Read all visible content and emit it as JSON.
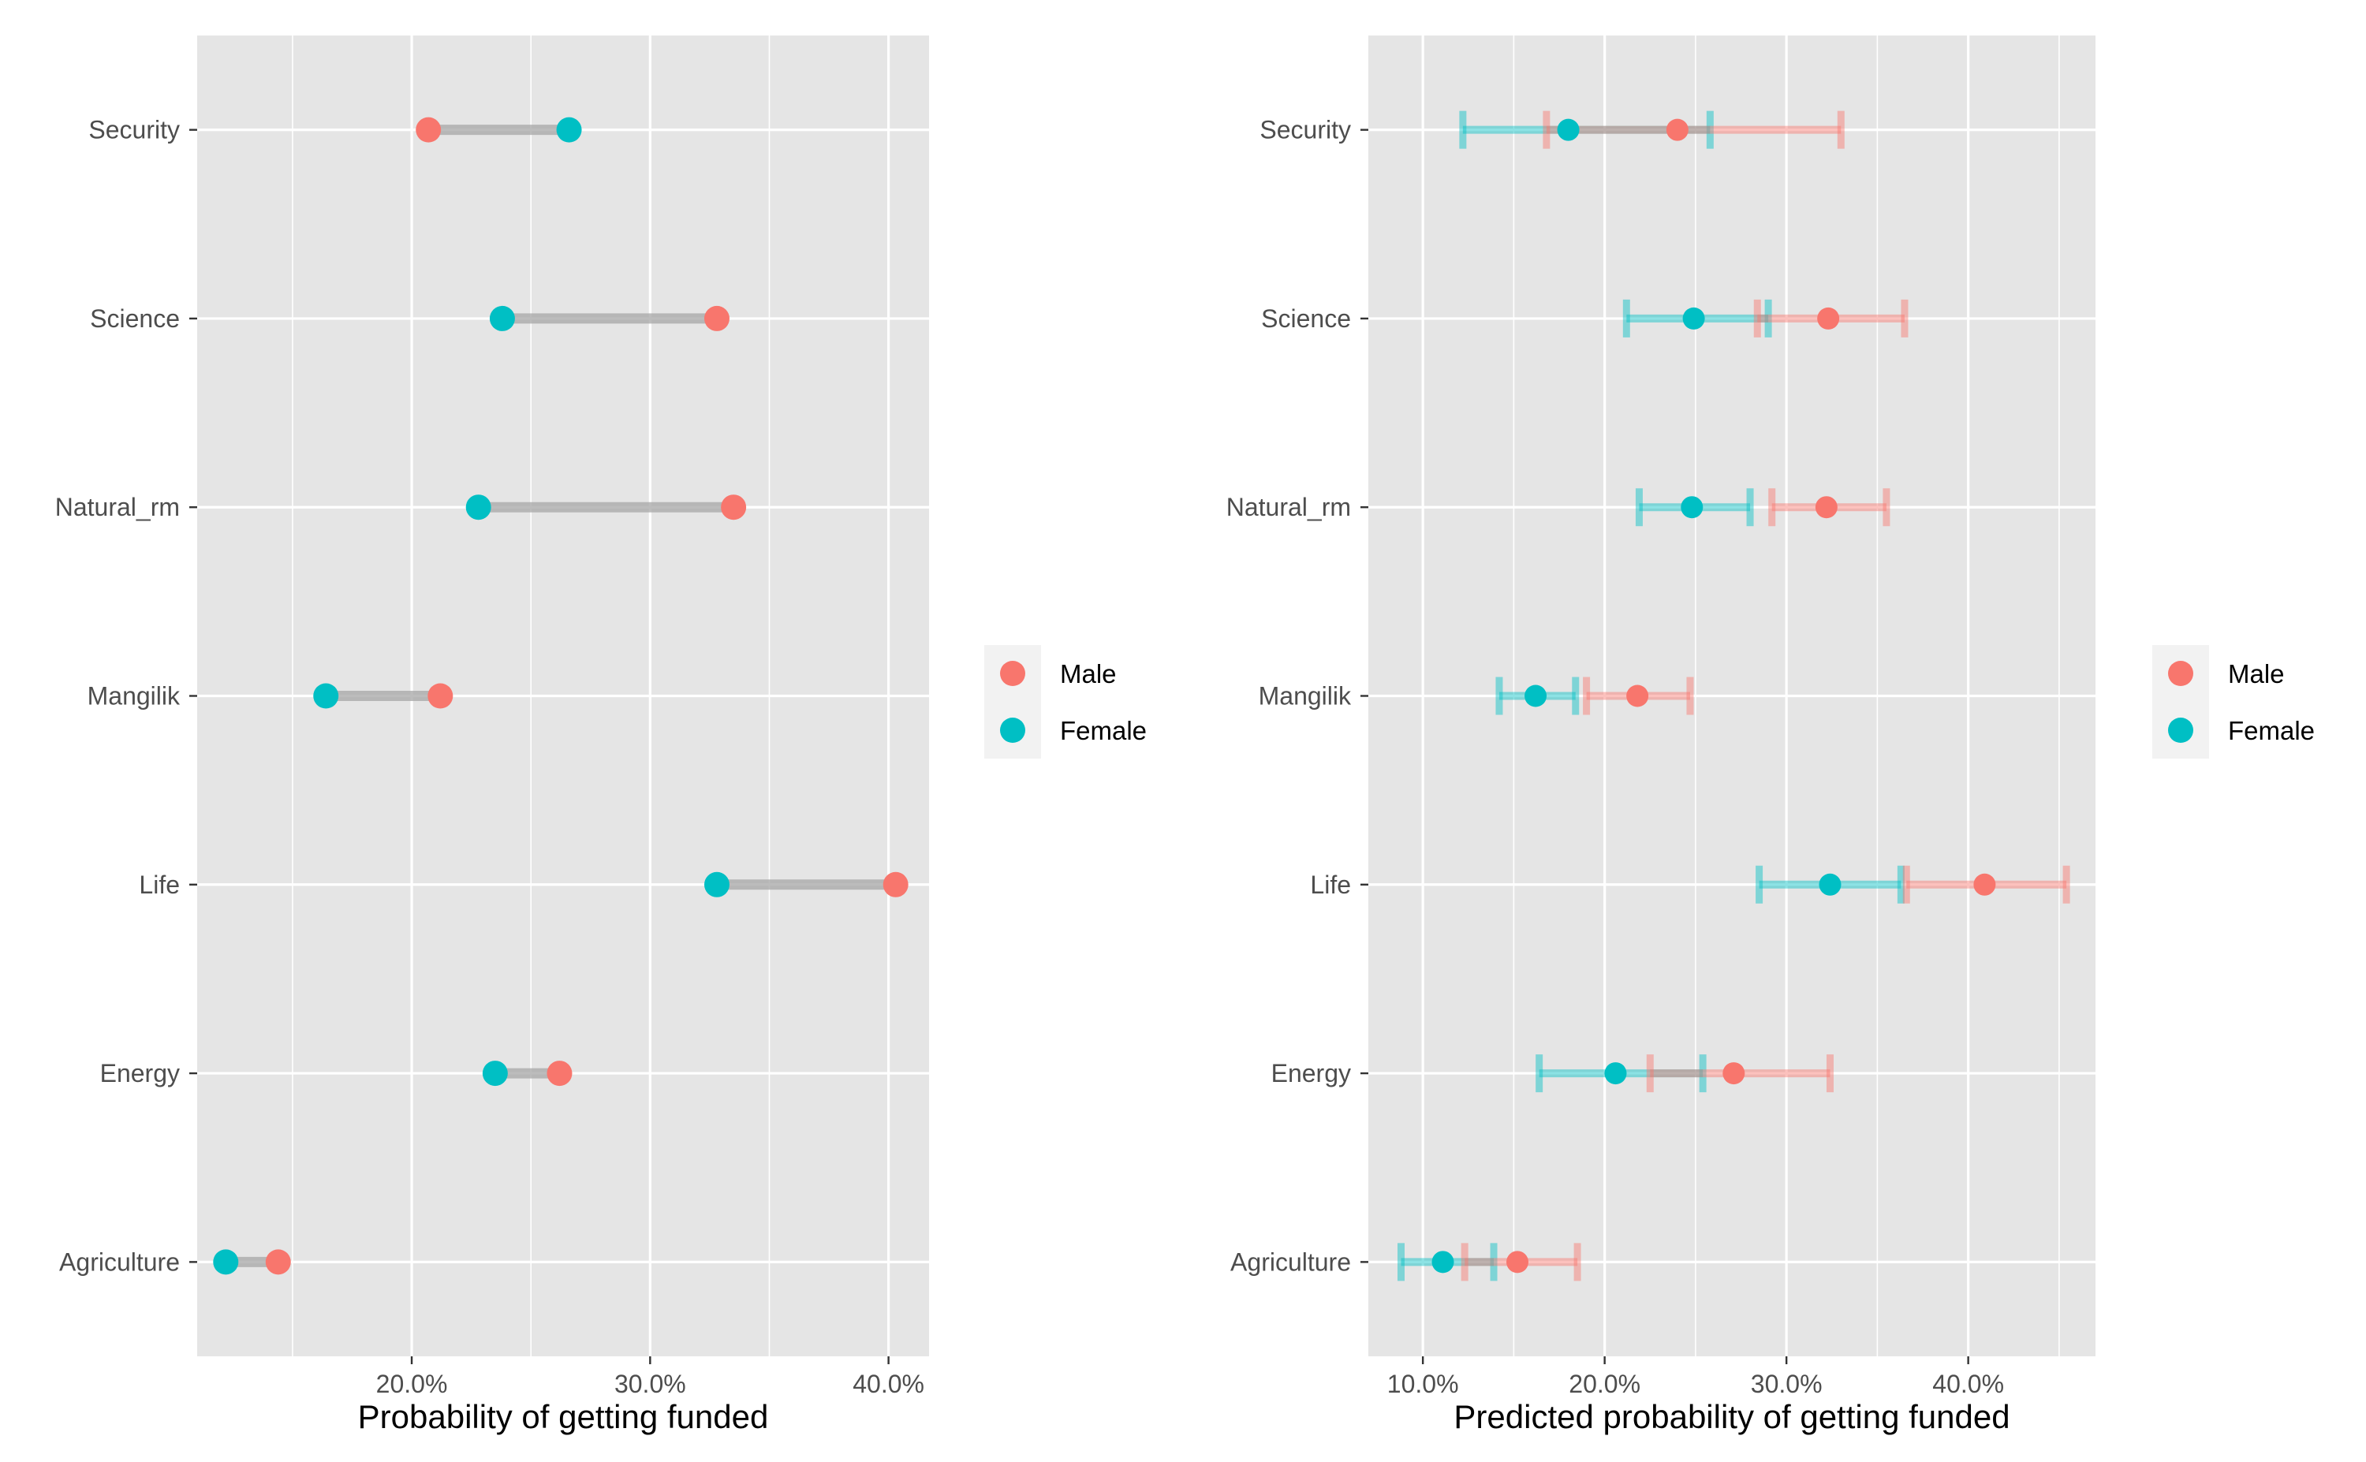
{
  "colors": {
    "male": "#f8766d",
    "female": "#00bfc4",
    "panel": "#e5e5e5",
    "segment": "#a6a6a6"
  },
  "chart_data": [
    {
      "type": "dumbbell",
      "title": "",
      "xlabel": "Probability of getting funded",
      "ylabel": "",
      "xlim": [
        11.0,
        41.7
      ],
      "x_ticks": [
        20,
        30,
        40
      ],
      "x_tick_labels": [
        "20.0%",
        "30.0%",
        "40.0%"
      ],
      "categories": [
        "Security",
        "Science",
        "Natural_rm",
        "Mangilik",
        "Life",
        "Energy",
        "Agriculture"
      ],
      "series": [
        {
          "name": "Male",
          "color": "#f8766d",
          "values": [
            20.7,
            32.8,
            33.5,
            21.2,
            40.3,
            26.2,
            14.4
          ]
        },
        {
          "name": "Female",
          "color": "#00bfc4",
          "values": [
            26.6,
            23.8,
            22.8,
            16.4,
            32.8,
            23.5,
            12.2
          ]
        }
      ],
      "legend": {
        "position": "right",
        "entries": [
          "Male",
          "Female"
        ]
      },
      "grid": true
    },
    {
      "type": "errorbar",
      "title": "",
      "xlabel": "Predicted probability of getting funded",
      "ylabel": "",
      "xlim": [
        7.0,
        47.0
      ],
      "x_ticks": [
        10,
        20,
        30,
        40
      ],
      "x_tick_labels": [
        "10.0%",
        "20.0%",
        "30.0%",
        "40.0%"
      ],
      "categories": [
        "Security",
        "Science",
        "Natural_rm",
        "Mangilik",
        "Life",
        "Energy",
        "Agriculture"
      ],
      "series": [
        {
          "name": "Male",
          "color": "#f8766d",
          "values": [
            24.0,
            32.3,
            32.2,
            21.8,
            40.9,
            27.1,
            15.2
          ],
          "lower": [
            16.8,
            28.4,
            29.2,
            19.0,
            36.6,
            22.5,
            12.3
          ],
          "upper": [
            33.0,
            36.5,
            35.5,
            24.7,
            45.4,
            32.4,
            18.5
          ]
        },
        {
          "name": "Female",
          "color": "#00bfc4",
          "values": [
            18.0,
            24.9,
            24.8,
            16.2,
            32.4,
            20.6,
            11.1
          ],
          "lower": [
            12.2,
            21.2,
            21.9,
            14.2,
            28.5,
            16.4,
            8.8
          ],
          "upper": [
            25.8,
            29.0,
            28.0,
            18.4,
            36.3,
            25.4,
            13.9
          ]
        }
      ],
      "legend": {
        "position": "right",
        "entries": [
          "Male",
          "Female"
        ]
      },
      "grid": true
    }
  ]
}
